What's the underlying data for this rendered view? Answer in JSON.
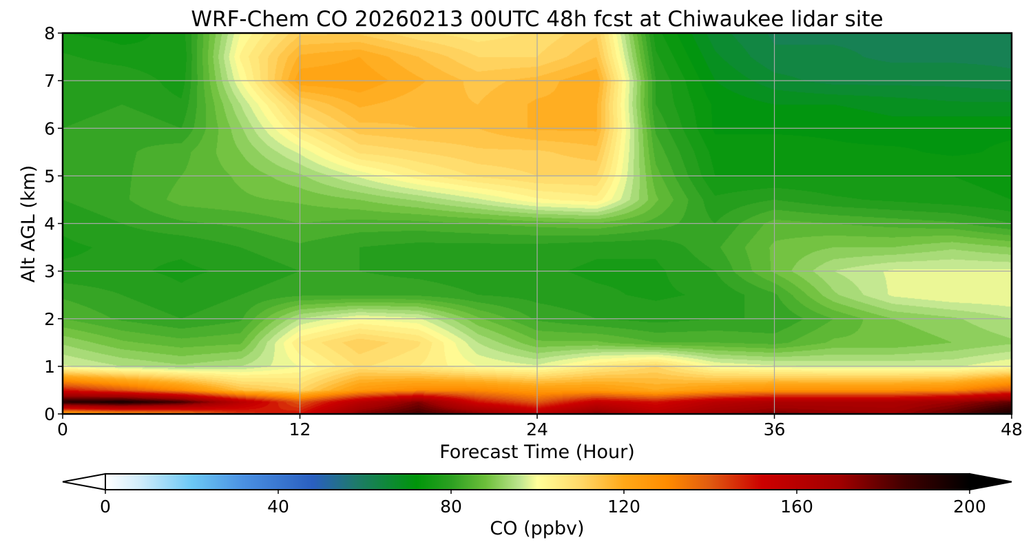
{
  "chart_data": {
    "type": "heatmap",
    "title": "WRF-Chem CO  20260213 00UTC 48h fcst at Chiwaukee lidar site",
    "xlabel": "Forecast Time (Hour)",
    "ylabel": "Alt AGL (km)",
    "xlim": [
      0,
      48
    ],
    "ylim": [
      0,
      8
    ],
    "xticks": [
      0,
      12,
      24,
      36,
      48
    ],
    "yticks": [
      0,
      1,
      2,
      3,
      4,
      5,
      6,
      7,
      8
    ],
    "grid": true,
    "x": [
      0,
      3,
      6,
      9,
      12,
      15,
      18,
      21,
      24,
      27,
      30,
      33,
      36,
      39,
      42,
      45,
      48
    ],
    "y": [
      0,
      0.25,
      0.5,
      1,
      1.5,
      2,
      2.5,
      3,
      3.5,
      4,
      4.5,
      5,
      5.5,
      6,
      6.5,
      7,
      7.5,
      8
    ],
    "z": [
      [
        118,
        125,
        130,
        145,
        150,
        175,
        185,
        175,
        160,
        175,
        160,
        170,
        175,
        172,
        170,
        180,
        195
      ],
      [
        190,
        195,
        185,
        160,
        140,
        160,
        175,
        150,
        140,
        155,
        150,
        160,
        165,
        165,
        165,
        170,
        180
      ],
      [
        150,
        140,
        130,
        115,
        110,
        125,
        130,
        130,
        125,
        125,
        120,
        125,
        128,
        128,
        128,
        130,
        140
      ],
      [
        98,
        95,
        93,
        95,
        100,
        108,
        105,
        100,
        98,
        105,
        110,
        100,
        98,
        97,
        97,
        97,
        100
      ],
      [
        92,
        88,
        86,
        87,
        105,
        112,
        108,
        95,
        88,
        88,
        85,
        85,
        84,
        88,
        88,
        90,
        92
      ],
      [
        85,
        82,
        80,
        82,
        95,
        100,
        98,
        88,
        82,
        80,
        79,
        80,
        80,
        85,
        90,
        92,
        95
      ],
      [
        82,
        80,
        78,
        80,
        82,
        82,
        82,
        80,
        79,
        78,
        77,
        78,
        82,
        92,
        98,
        100,
        100
      ],
      [
        78,
        78,
        77,
        78,
        80,
        80,
        79,
        78,
        78,
        77,
        77,
        80,
        88,
        95,
        98,
        98,
        98
      ],
      [
        77,
        78,
        78,
        80,
        82,
        80,
        79,
        79,
        79,
        78,
        78,
        82,
        88,
        90,
        90,
        92,
        90
      ],
      [
        78,
        80,
        82,
        83,
        85,
        84,
        84,
        85,
        86,
        87,
        84,
        80,
        86,
        85,
        84,
        83,
        80
      ],
      [
        80,
        82,
        86,
        87,
        88,
        90,
        93,
        97,
        102,
        104,
        88,
        78,
        80,
        78,
        77,
        76,
        75
      ],
      [
        80,
        82,
        85,
        88,
        92,
        98,
        104,
        108,
        110,
        110,
        86,
        75,
        75,
        75,
        75,
        75,
        74
      ],
      [
        80,
        82,
        84,
        90,
        98,
        108,
        110,
        112,
        112,
        114,
        84,
        74,
        74,
        73,
        73,
        72,
        73
      ],
      [
        80,
        82,
        80,
        92,
        106,
        114,
        115,
        115,
        118,
        118,
        82,
        72,
        72,
        72,
        71,
        72,
        72
      ],
      [
        78,
        80,
        78,
        95,
        112,
        118,
        116,
        115,
        118,
        118,
        80,
        72,
        70,
        70,
        69,
        68,
        68
      ],
      [
        80,
        80,
        76,
        100,
        122,
        122,
        118,
        114,
        116,
        120,
        80,
        70,
        66,
        64,
        64,
        64,
        63
      ],
      [
        78,
        76,
        75,
        103,
        118,
        120,
        115,
        110,
        110,
        115,
        78,
        68,
        63,
        63,
        62,
        62,
        62
      ],
      [
        75,
        74,
        76,
        100,
        112,
        112,
        108,
        106,
        108,
        112,
        76,
        66,
        62,
        62,
        62,
        62,
        61
      ]
    ],
    "colorbar": {
      "label": "CO  (ppbv)",
      "min": 0,
      "max": 200,
      "ticks": [
        0,
        40,
        80,
        120,
        160,
        200
      ],
      "extend": "both",
      "stops": [
        {
          "v": 0,
          "c": "#ffffff"
        },
        {
          "v": 8,
          "c": "#d0ecfa"
        },
        {
          "v": 20,
          "c": "#6cc8f5"
        },
        {
          "v": 32,
          "c": "#4a90e2"
        },
        {
          "v": 48,
          "c": "#2a5fc0"
        },
        {
          "v": 58,
          "c": "#1e7a6a"
        },
        {
          "v": 72,
          "c": "#00960a"
        },
        {
          "v": 80,
          "c": "#2ca021"
        },
        {
          "v": 88,
          "c": "#6cbf3a"
        },
        {
          "v": 96,
          "c": "#c0e690"
        },
        {
          "v": 100,
          "c": "#ffff99"
        },
        {
          "v": 110,
          "c": "#ffd868"
        },
        {
          "v": 120,
          "c": "#ffa818"
        },
        {
          "v": 130,
          "c": "#ff8c00"
        },
        {
          "v": 140,
          "c": "#e05a10"
        },
        {
          "v": 152,
          "c": "#cc0000"
        },
        {
          "v": 170,
          "c": "#a00000"
        },
        {
          "v": 185,
          "c": "#400000"
        },
        {
          "v": 200,
          "c": "#000000"
        }
      ]
    }
  }
}
